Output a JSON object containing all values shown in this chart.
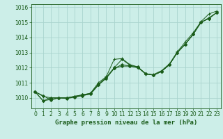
{
  "xlabel": "Graphe pression niveau de la mer (hPa)",
  "ylim": [
    1009.3,
    1016.2
  ],
  "xlim": [
    -0.5,
    23.5
  ],
  "yticks": [
    1010,
    1011,
    1012,
    1013,
    1014,
    1015,
    1016
  ],
  "xticks": [
    0,
    1,
    2,
    3,
    4,
    5,
    6,
    7,
    8,
    9,
    10,
    11,
    12,
    13,
    14,
    15,
    16,
    17,
    18,
    19,
    20,
    21,
    22,
    23
  ],
  "bg_color": "#cceee8",
  "grid_color": "#aad4ce",
  "line_color": "#1a5c1a",
  "series": [
    [
      1010.4,
      1010.15,
      1009.85,
      1010.0,
      1010.0,
      1010.1,
      1010.2,
      1010.3,
      1010.9,
      1011.35,
      1012.0,
      1012.55,
      1012.15,
      1012.05,
      1011.6,
      1011.5,
      1011.75,
      1012.2,
      1013.0,
      1013.55,
      1014.2,
      1015.0,
      1015.25,
      1015.65
    ],
    [
      1010.4,
      1009.8,
      1009.9,
      1010.0,
      1010.0,
      1010.05,
      1010.15,
      1010.25,
      1010.85,
      1011.3,
      1011.95,
      1012.2,
      1012.1,
      1012.0,
      1011.6,
      1011.5,
      1011.75,
      1012.2,
      1013.0,
      1013.55,
      1014.2,
      1015.0,
      1015.25,
      1015.65
    ],
    [
      1010.4,
      1009.8,
      1010.0,
      1010.0,
      1009.95,
      1010.05,
      1010.15,
      1010.25,
      1010.85,
      1011.3,
      1011.95,
      1012.1,
      1012.1,
      1012.0,
      1011.6,
      1011.5,
      1011.75,
      1012.2,
      1013.0,
      1013.55,
      1014.2,
      1015.0,
      1015.3,
      1015.65
    ],
    [
      1010.4,
      1010.1,
      1010.0,
      1010.0,
      1010.0,
      1010.1,
      1010.2,
      1010.3,
      1011.0,
      1011.4,
      1012.55,
      1012.6,
      1012.2,
      1012.05,
      1011.55,
      1011.55,
      1011.8,
      1012.25,
      1013.05,
      1013.7,
      1014.3,
      1015.05,
      1015.55,
      1015.75
    ]
  ]
}
